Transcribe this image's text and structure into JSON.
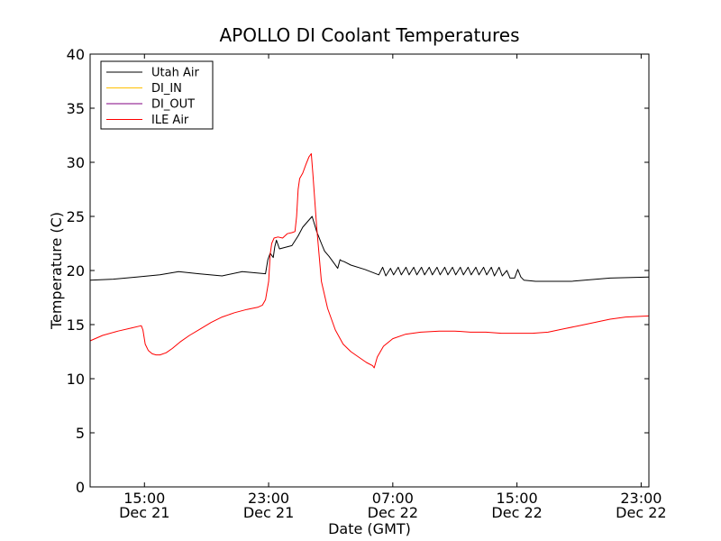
{
  "chart_data": {
    "type": "line",
    "title": "APOLLO DI Coolant Temperatures",
    "xlabel": "Date (GMT)",
    "ylabel": "Temperature (C)",
    "ylim": [
      0,
      40
    ],
    "xlim": [
      11.5,
      47.5
    ],
    "grid": false,
    "legend_position": "top-left",
    "x_unit": "hours since Dec 21 00:00 GMT",
    "yticks": [
      0,
      5,
      10,
      15,
      20,
      25,
      30,
      35,
      40
    ],
    "ytick_labels": [
      "0",
      "5",
      "10",
      "15",
      "20",
      "25",
      "30",
      "35",
      "40"
    ],
    "xticks": [
      {
        "value": 15,
        "line1": "15:00",
        "line2": "Dec 21"
      },
      {
        "value": 23,
        "line1": "23:00",
        "line2": "Dec 21"
      },
      {
        "value": 31,
        "line1": "07:00",
        "line2": "Dec 22"
      },
      {
        "value": 39,
        "line1": "15:00",
        "line2": "Dec 22"
      },
      {
        "value": 47,
        "line1": "23:00",
        "line2": "Dec 22"
      }
    ],
    "series": [
      {
        "name": "Utah Air",
        "color": "#000000",
        "x": [
          11.5,
          13.0,
          14.5,
          16.0,
          17.2,
          18.5,
          20.0,
          21.3,
          22.8,
          22.95,
          23.1,
          23.3,
          23.4,
          23.5,
          23.7,
          24.5,
          24.9,
          25.2,
          25.8,
          26.1,
          26.4,
          26.6,
          26.9,
          27.2,
          27.45,
          27.6,
          27.7,
          27.9,
          28.3,
          29.2,
          30.1,
          30.35,
          30.55,
          30.85,
          31.05,
          31.35,
          31.55,
          31.85,
          32.05,
          32.35,
          32.55,
          32.85,
          33.05,
          33.35,
          33.55,
          33.85,
          34.05,
          34.35,
          34.55,
          34.85,
          35.05,
          35.35,
          35.55,
          35.85,
          36.05,
          36.35,
          36.55,
          36.85,
          37.05,
          37.35,
          37.55,
          37.85,
          38.05,
          38.35,
          38.55,
          38.85,
          39.05,
          39.25,
          39.45,
          40.2,
          42.5,
          45.0,
          47.5
        ],
        "y": [
          19.1,
          19.2,
          19.4,
          19.6,
          19.9,
          19.7,
          19.5,
          19.9,
          19.7,
          21.0,
          21.6,
          21.2,
          22.2,
          22.8,
          22.0,
          22.3,
          23.2,
          24.0,
          25.0,
          23.6,
          22.5,
          21.8,
          21.3,
          20.7,
          20.2,
          21.0,
          20.9,
          20.8,
          20.5,
          20.1,
          19.6,
          20.3,
          19.5,
          20.2,
          19.6,
          20.3,
          19.6,
          20.3,
          19.6,
          20.3,
          19.6,
          20.3,
          19.6,
          20.3,
          19.6,
          20.3,
          19.6,
          20.3,
          19.6,
          20.3,
          19.6,
          20.3,
          19.6,
          20.3,
          19.6,
          20.3,
          19.6,
          20.3,
          19.6,
          20.3,
          19.5,
          20.3,
          19.5,
          20.0,
          19.3,
          19.3,
          20.1,
          19.4,
          19.1,
          19.0,
          19.0,
          19.3,
          19.4
        ]
      },
      {
        "name": "DI_IN",
        "color": "#ffbf00",
        "x": [],
        "y": []
      },
      {
        "name": "DI_OUT",
        "color": "#800080",
        "x": [],
        "y": []
      },
      {
        "name": "ILE Air",
        "color": "#ff0000",
        "x": [
          11.5,
          12.3,
          13.3,
          14.2,
          14.8,
          14.9,
          15.05,
          15.25,
          15.5,
          15.75,
          16.0,
          16.4,
          16.8,
          17.3,
          17.9,
          18.6,
          19.3,
          20.0,
          20.8,
          21.6,
          22.3,
          22.6,
          22.8,
          23.0,
          23.1,
          23.2,
          23.35,
          23.6,
          23.9,
          24.2,
          24.5,
          24.7,
          24.8,
          24.9,
          25.0,
          25.2,
          25.4,
          25.6,
          25.75,
          25.85,
          26.1,
          26.4,
          26.8,
          27.3,
          27.8,
          28.3,
          28.8,
          29.3,
          29.7,
          29.8,
          30.0,
          30.4,
          31.0,
          31.8,
          32.8,
          34.0,
          35.0,
          36.0,
          37.0,
          38.0,
          39.0,
          40.0,
          41.0,
          42.0,
          43.0,
          44.0,
          45.0,
          46.0,
          47.5
        ],
        "y": [
          13.5,
          14.0,
          14.4,
          14.7,
          14.9,
          14.5,
          13.2,
          12.6,
          12.3,
          12.2,
          12.2,
          12.4,
          12.8,
          13.4,
          14.0,
          14.6,
          15.2,
          15.7,
          16.1,
          16.4,
          16.6,
          16.8,
          17.3,
          19.0,
          21.5,
          22.5,
          23.0,
          23.1,
          23.0,
          23.4,
          23.5,
          23.6,
          25.0,
          27.5,
          28.5,
          29.0,
          29.8,
          30.5,
          30.8,
          29.0,
          24.0,
          19.0,
          16.5,
          14.5,
          13.2,
          12.5,
          12.0,
          11.5,
          11.2,
          11.0,
          12.0,
          13.0,
          13.7,
          14.1,
          14.3,
          14.4,
          14.4,
          14.3,
          14.3,
          14.2,
          14.2,
          14.2,
          14.3,
          14.6,
          14.9,
          15.2,
          15.5,
          15.7,
          15.8
        ]
      }
    ]
  }
}
